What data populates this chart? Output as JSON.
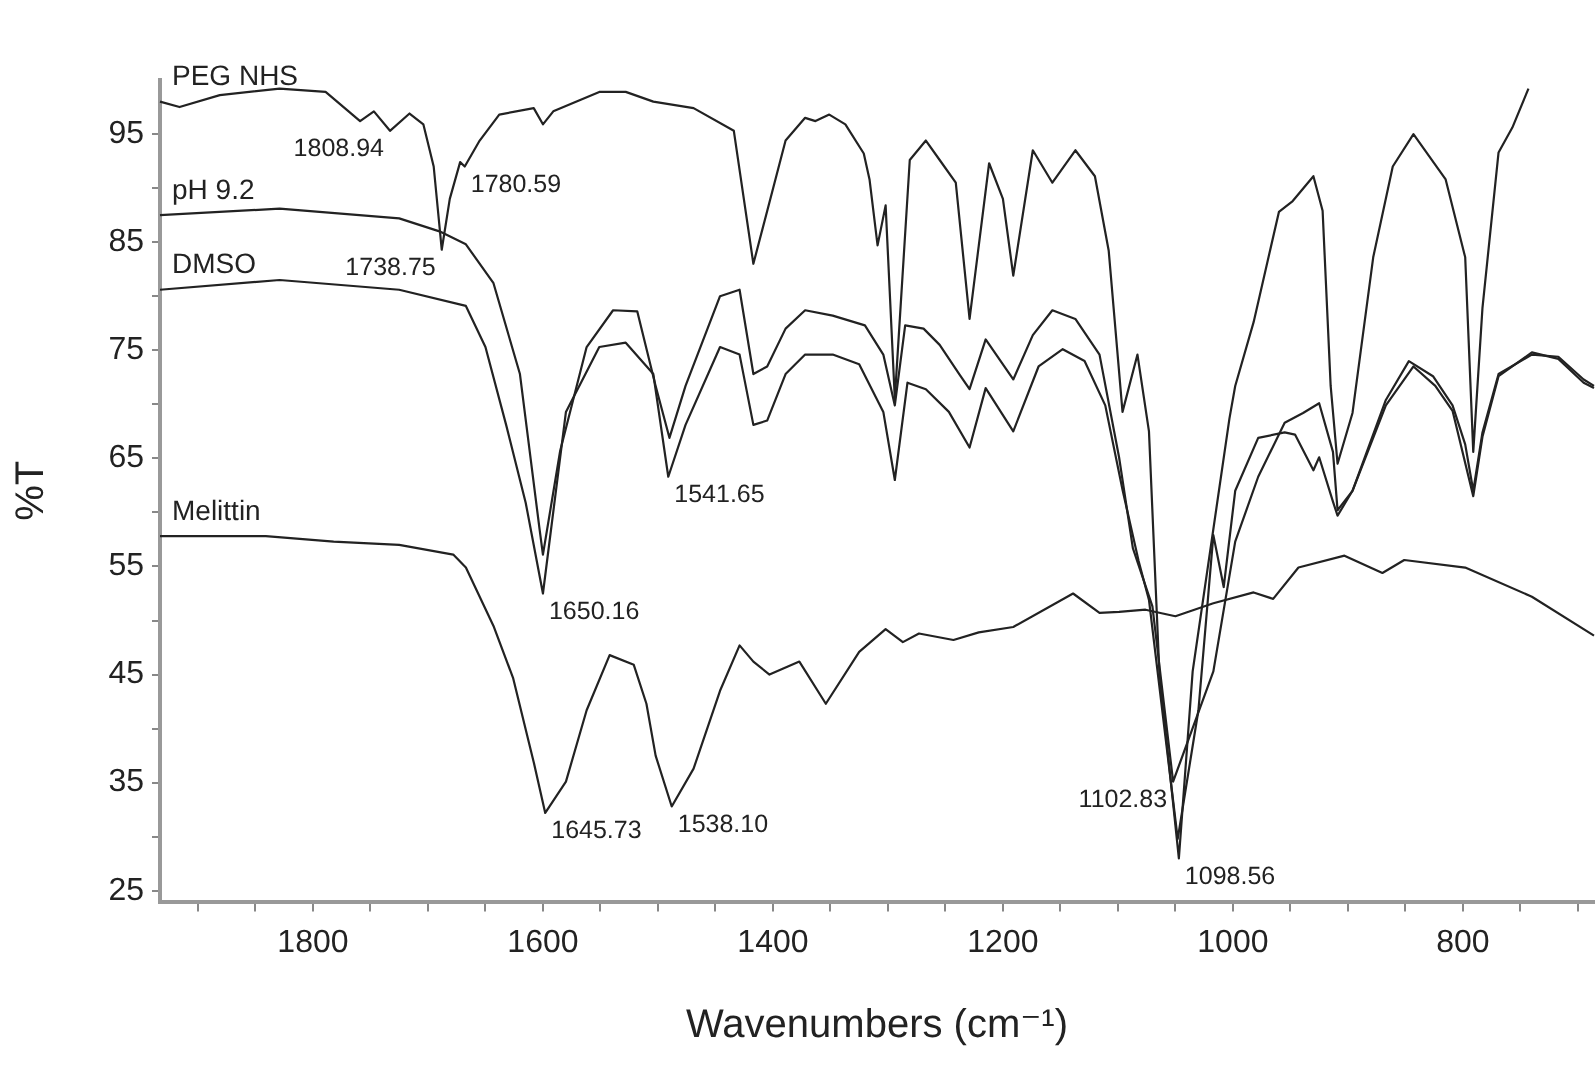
{
  "chart_data": {
    "type": "line",
    "xlabel": "Wavenumbers (cm⁻¹)",
    "ylabel": "%T",
    "xlim": [
      1933,
      686
    ],
    "ylim": [
      24,
      100
    ],
    "xticks": [
      {
        "value": 1900,
        "label": null
      },
      {
        "value": 1850,
        "label": null
      },
      1800,
      {
        "value": 1750,
        "label": null
      },
      {
        "value": 1700,
        "label": null
      },
      {
        "value": 1650,
        "label": null
      },
      1600,
      {
        "value": 1550,
        "label": null
      },
      {
        "value": 1500,
        "label": null
      },
      {
        "value": 1450,
        "label": null
      },
      1400,
      {
        "value": 1350,
        "label": null
      },
      {
        "value": 1300,
        "label": null
      },
      {
        "value": 1250,
        "label": null
      },
      1200,
      {
        "value": 1150,
        "label": null
      },
      {
        "value": 1100,
        "label": null
      },
      {
        "value": 1050,
        "label": null
      },
      1000,
      {
        "value": 950,
        "label": null
      },
      {
        "value": 900,
        "label": null
      },
      {
        "value": 850,
        "label": null
      },
      800,
      {
        "value": 750,
        "label": null
      },
      {
        "value": 700,
        "label": null
      }
    ],
    "yticks": [
      25,
      {
        "value": 30,
        "label": null
      },
      35,
      {
        "value": 40,
        "label": null
      },
      45,
      {
        "value": 50,
        "label": null
      },
      55,
      {
        "value": 60,
        "label": null
      },
      65,
      {
        "value": 70,
        "label": null
      },
      75,
      {
        "value": 80,
        "label": null
      },
      85,
      {
        "value": 90,
        "label": null
      },
      95
    ],
    "grid": false,
    "legend": false,
    "marker": "none",
    "line_style": "solid",
    "series": [
      {
        "name": "PEG NHS",
        "color": "#222222",
        "x": [
          1933,
          1916,
          1881,
          1829,
          1789,
          1759,
          1747,
          1733,
          1716,
          1704,
          1695,
          1688,
          1681,
          1672,
          1668,
          1655,
          1638,
          1608,
          1600,
          1591,
          1551,
          1528,
          1504,
          1469,
          1434,
          1417,
          1389,
          1372,
          1363,
          1351,
          1337,
          1321,
          1316,
          1309,
          1302,
          1294,
          1281,
          1267,
          1255,
          1241,
          1229,
          1212,
          1200,
          1191,
          1174,
          1157,
          1137,
          1120,
          1108,
          1096,
          1083,
          1073,
          1064,
          1047,
          1035,
          1003,
          998,
          982,
          960,
          948,
          930,
          922,
          915,
          909,
          896,
          878,
          861,
          843,
          815,
          798,
          791,
          783,
          769,
          757,
          743
        ],
        "values": [
          98.0,
          97.5,
          98.6,
          99.2,
          98.9,
          96.2,
          97.1,
          95.3,
          96.9,
          95.9,
          92.0,
          84.3,
          89.0,
          92.4,
          92.0,
          94.4,
          96.8,
          97.4,
          95.9,
          97.1,
          98.9,
          98.9,
          98.0,
          97.4,
          95.3,
          83.0,
          94.4,
          96.5,
          96.2,
          96.8,
          95.9,
          93.2,
          90.8,
          84.7,
          88.4,
          70.5,
          92.6,
          94.4,
          92.6,
          90.5,
          77.9,
          92.3,
          89.0,
          81.9,
          93.5,
          90.5,
          93.5,
          91.1,
          84.2,
          69.3,
          74.6,
          67.5,
          45.3,
          28.0,
          45.3,
          68.7,
          71.7,
          77.6,
          87.8,
          88.8,
          91.1,
          87.9,
          71.7,
          64.5,
          69.2,
          83.6,
          92.0,
          95.0,
          90.8,
          83.6,
          65.6,
          78.9,
          93.3,
          95.6,
          99.2
        ]
      },
      {
        "name": "pH 9.2",
        "color": "#222222",
        "x": [
          1933,
          1829,
          1725,
          1690,
          1667,
          1643,
          1620,
          1603,
          1600,
          1585,
          1562,
          1539,
          1518,
          1502,
          1490,
          1476,
          1446,
          1429,
          1417,
          1405,
          1389,
          1372,
          1348,
          1320,
          1304,
          1294,
          1285,
          1269,
          1255,
          1238,
          1229,
          1215,
          1191,
          1174,
          1157,
          1137,
          1116,
          1099,
          1087,
          1070,
          1052,
          1017,
          998,
          978,
          955,
          939,
          925,
          913,
          909,
          896,
          867,
          847,
          826,
          809,
          798,
          791,
          783,
          769,
          740,
          717,
          695,
          686
        ],
        "values": [
          87.5,
          88.1,
          87.2,
          86.0,
          84.8,
          81.2,
          72.8,
          58.5,
          56.1,
          65.7,
          75.3,
          78.7,
          78.6,
          71.7,
          66.9,
          71.7,
          80.0,
          80.6,
          72.8,
          73.5,
          77.0,
          78.7,
          78.2,
          77.3,
          74.6,
          69.9,
          77.3,
          77.0,
          75.5,
          72.8,
          71.4,
          76.0,
          72.3,
          76.4,
          78.7,
          77.9,
          74.6,
          65.1,
          56.7,
          51.3,
          35.1,
          45.3,
          57.3,
          63.3,
          68.3,
          69.2,
          70.1,
          65.6,
          60.2,
          62.0,
          70.4,
          74.0,
          72.6,
          69.9,
          66.3,
          62.0,
          67.4,
          72.8,
          74.6,
          74.4,
          72.3,
          71.7
        ]
      },
      {
        "name": "DMSO",
        "color": "#222222",
        "x": [
          1933,
          1829,
          1725,
          1667,
          1650,
          1632,
          1615,
          1600,
          1580,
          1551,
          1528,
          1504,
          1491,
          1476,
          1446,
          1429,
          1417,
          1405,
          1389,
          1372,
          1348,
          1325,
          1304,
          1294,
          1283,
          1267,
          1247,
          1229,
          1215,
          1191,
          1169,
          1148,
          1129,
          1111,
          1096,
          1082,
          1073,
          1048,
          1030,
          1017,
          1008,
          998,
          978,
          955,
          946,
          930,
          925,
          913,
          909,
          896,
          867,
          843,
          824,
          809,
          791,
          783,
          769,
          740,
          717,
          695,
          686
        ],
        "values": [
          80.6,
          81.5,
          80.6,
          79.1,
          75.3,
          68.1,
          60.9,
          52.5,
          69.3,
          75.3,
          75.7,
          72.8,
          63.3,
          68.1,
          75.3,
          74.6,
          68.1,
          68.5,
          72.8,
          74.6,
          74.6,
          73.7,
          69.3,
          63.0,
          72.0,
          71.4,
          69.3,
          66.0,
          71.5,
          67.5,
          73.5,
          75.1,
          74.0,
          69.9,
          62.1,
          55.5,
          51.9,
          29.8,
          41.7,
          57.9,
          53.1,
          62.0,
          66.9,
          67.4,
          67.2,
          63.9,
          65.1,
          61.0,
          59.7,
          62.0,
          69.9,
          73.5,
          71.7,
          69.4,
          61.5,
          67.0,
          72.6,
          74.8,
          74.2,
          72.0,
          71.5
        ]
      },
      {
        "name": "Melittin",
        "color": "#222222",
        "x": [
          1933,
          1841,
          1782,
          1725,
          1678,
          1667,
          1643,
          1626,
          1608,
          1598,
          1580,
          1562,
          1542,
          1521,
          1510,
          1502,
          1488,
          1469,
          1446,
          1429,
          1417,
          1403,
          1377,
          1354,
          1325,
          1302,
          1287,
          1273,
          1243,
          1221,
          1191,
          1139,
          1116,
          1099,
          1076,
          1050,
          1017,
          982,
          965,
          943,
          903,
          870,
          851,
          798,
          740,
          686
        ],
        "values": [
          57.8,
          57.8,
          57.3,
          57.0,
          56.1,
          54.9,
          49.5,
          44.7,
          36.9,
          32.2,
          35.1,
          41.7,
          46.8,
          45.9,
          42.3,
          37.5,
          32.8,
          36.3,
          43.5,
          47.7,
          46.2,
          45.0,
          46.2,
          42.3,
          47.1,
          49.2,
          48.0,
          48.8,
          48.2,
          48.9,
          49.4,
          52.5,
          50.7,
          50.8,
          51.0,
          50.4,
          51.6,
          52.6,
          52.0,
          54.9,
          56.0,
          54.4,
          55.6,
          54.9,
          52.2,
          48.6
        ]
      }
    ],
    "annotations": [
      {
        "text": "1808.94",
        "x": 1733,
        "y": 95.3
      },
      {
        "text": "1780.59",
        "x": 1668,
        "y": 92.0
      },
      {
        "text": "1738.75",
        "x": 1688,
        "y": 84.3
      },
      {
        "text": "1541.65",
        "x": 1491,
        "y": 63.3
      },
      {
        "text": "1650.16",
        "x": 1600,
        "y": 52.5
      },
      {
        "text": "1645.73",
        "x": 1598,
        "y": 32.2
      },
      {
        "text": "1538.10",
        "x": 1488,
        "y": 32.8
      },
      {
        "text": "1102.83",
        "x": 1052,
        "y": 35.1
      },
      {
        "text": "1098.56",
        "x": 1047,
        "y": 28.0
      }
    ]
  }
}
